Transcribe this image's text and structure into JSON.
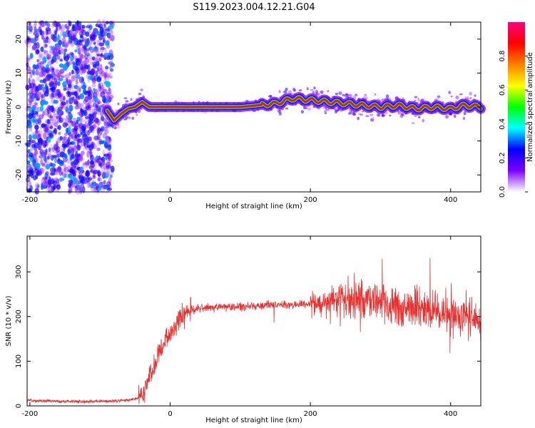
{
  "title": "S119.2023.004.12.21.G04",
  "chart_data": [
    {
      "type": "heatmap",
      "xlabel": "Height of straight line (km)",
      "ylabel": "Frequency (Hz)",
      "xlim": [
        -204,
        443
      ],
      "ylim": [
        -25,
        25
      ],
      "x_ticks": [
        -200,
        0,
        200,
        400
      ],
      "y_ticks": [
        20,
        10,
        0,
        -10,
        -20
      ],
      "colorbar": {
        "label": "Normalized spectral amplitude",
        "range": [
          0,
          1
        ],
        "ticks": [
          0.0,
          0.2,
          0.4,
          0.6,
          0.8
        ],
        "colormap": [
          "#ffffff",
          "#7f00ff",
          "#0000ff",
          "#00ffff",
          "#00ff00",
          "#ffff00",
          "#ff7f00",
          "#ff0000",
          "#ff0080"
        ]
      },
      "ridge": {
        "x": [
          -100,
          -90,
          -80,
          -70,
          -60,
          -50,
          -40,
          -30,
          -20,
          0,
          50,
          100,
          150,
          175,
          200,
          225,
          250,
          275,
          300,
          325,
          350,
          375,
          400,
          420,
          443
        ],
        "frequency": [
          0,
          -1,
          -4,
          -2,
          -0.5,
          0,
          1.5,
          0,
          0,
          0,
          0,
          0,
          1,
          2.5,
          2,
          1.5,
          1,
          0.5,
          0,
          0.5,
          -0.5,
          0,
          -0.5,
          0.5,
          0
        ]
      }
    },
    {
      "type": "line",
      "xlabel": "Height of straight line (km)",
      "ylabel": "SNR (10 * v/v)",
      "xlim": [
        -204,
        443
      ],
      "ylim": [
        0,
        380
      ],
      "x_ticks": [
        -200,
        0,
        200,
        400
      ],
      "y_ticks": [
        0,
        100,
        200,
        300
      ],
      "color": "#e8312f",
      "series": [
        {
          "x": [
            -204,
            -150,
            -100,
            -60,
            -45,
            -35,
            -25,
            -15,
            -5,
            5,
            12,
            20,
            30,
            50,
            100,
            150,
            200,
            220,
            240,
            260,
            280,
            300,
            320,
            340,
            360,
            380,
            400,
            420,
            443
          ],
          "values": [
            12,
            10,
            10,
            12,
            18,
            40,
            80,
            120,
            150,
            175,
            190,
            205,
            215,
            220,
            222,
            225,
            228,
            232,
            235,
            238,
            235,
            230,
            225,
            220,
            215,
            210,
            205,
            200,
            195
          ]
        }
      ]
    }
  ]
}
